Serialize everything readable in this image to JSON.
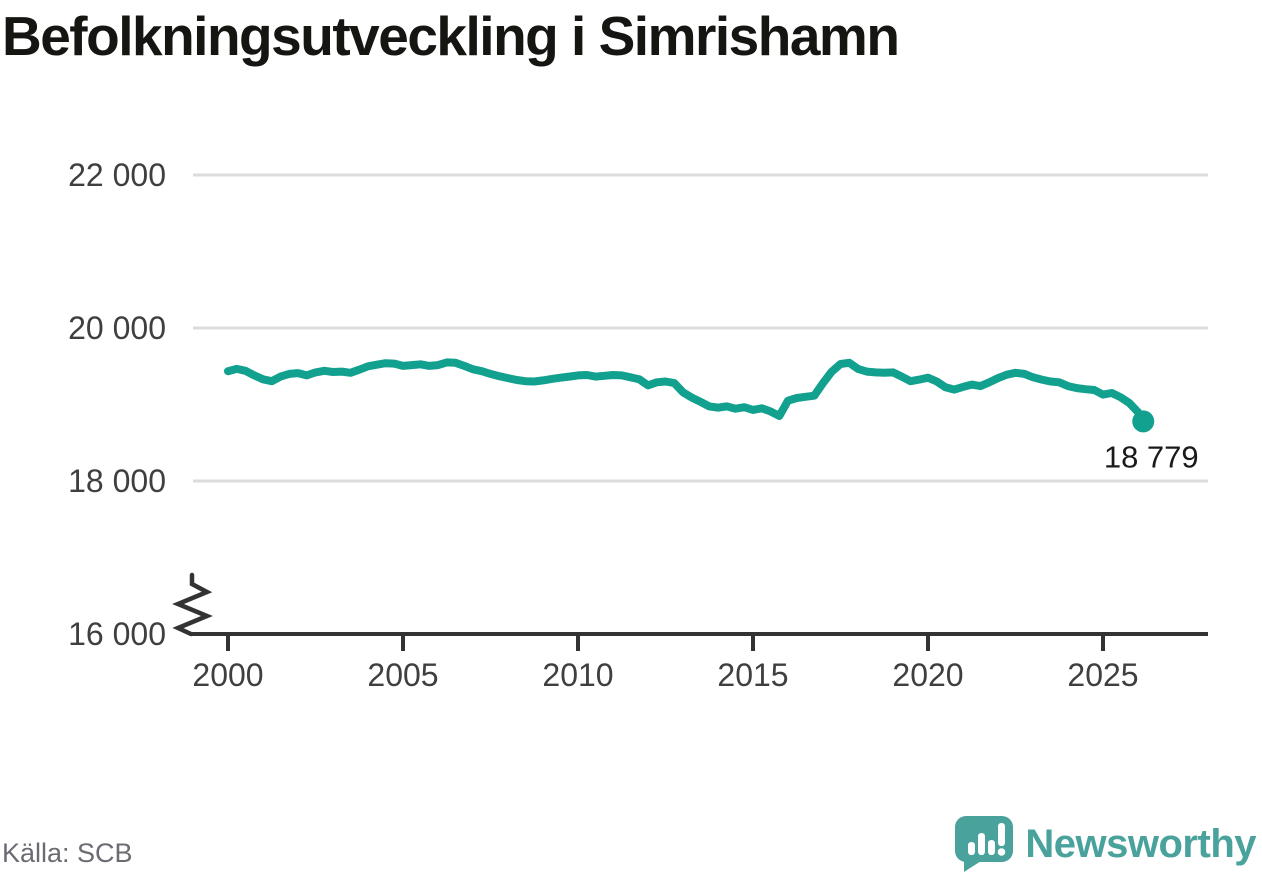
{
  "title": "Befolkningsutveckling i Simrishamn",
  "source": "Källa: SCB",
  "branding": {
    "name": "Newsworthy",
    "logo_icon": "bar-chart-speech-bubble-icon"
  },
  "colors": {
    "line": "#12a08f",
    "end_dot": "#12a08f",
    "grid": "#dcdcdc",
    "axis": "#333333",
    "tick_label": "#3f3f3f",
    "value_label": "#1a1a1a",
    "source_text": "#6b6b74",
    "brand_teal": "#4aa29c",
    "title_text": "#151512"
  },
  "chart_data": {
    "type": "line",
    "title": "Befolkningsutveckling i Simrishamn",
    "xlabel": "",
    "ylabel": "",
    "x_ticks": [
      2000,
      2005,
      2010,
      2015,
      2020,
      2025
    ],
    "y_ticks": [
      16000,
      18000,
      20000,
      22000
    ],
    "y_tick_labels": [
      "16 000",
      "18 000",
      "20 000",
      "22 000"
    ],
    "xlim": [
      1999,
      2028
    ],
    "ylim": [
      16000,
      22000
    ],
    "axis_break_at_bottom": true,
    "grid": "horizontal",
    "legend": "none",
    "end_value": 18779,
    "end_value_label": "18 779",
    "series": [
      {
        "name": "Befolkning i Simrishamn",
        "points": [
          [
            2000.0,
            19435
          ],
          [
            2000.25,
            19465
          ],
          [
            2000.5,
            19440
          ],
          [
            2000.75,
            19380
          ],
          [
            2001.0,
            19330
          ],
          [
            2001.25,
            19305
          ],
          [
            2001.5,
            19365
          ],
          [
            2001.75,
            19400
          ],
          [
            2002.0,
            19410
          ],
          [
            2002.25,
            19380
          ],
          [
            2002.5,
            19420
          ],
          [
            2002.75,
            19440
          ],
          [
            2003.0,
            19425
          ],
          [
            2003.25,
            19430
          ],
          [
            2003.5,
            19415
          ],
          [
            2003.75,
            19455
          ],
          [
            2004.0,
            19500
          ],
          [
            2004.25,
            19520
          ],
          [
            2004.5,
            19540
          ],
          [
            2004.75,
            19535
          ],
          [
            2005.0,
            19505
          ],
          [
            2005.25,
            19515
          ],
          [
            2005.5,
            19525
          ],
          [
            2005.75,
            19505
          ],
          [
            2006.0,
            19515
          ],
          [
            2006.25,
            19550
          ],
          [
            2006.5,
            19545
          ],
          [
            2006.75,
            19505
          ],
          [
            2007.0,
            19460
          ],
          [
            2007.25,
            19435
          ],
          [
            2007.5,
            19400
          ],
          [
            2007.75,
            19370
          ],
          [
            2008.0,
            19345
          ],
          [
            2008.25,
            19320
          ],
          [
            2008.5,
            19305
          ],
          [
            2008.75,
            19300
          ],
          [
            2009.0,
            19315
          ],
          [
            2009.25,
            19335
          ],
          [
            2009.5,
            19350
          ],
          [
            2009.75,
            19365
          ],
          [
            2010.0,
            19380
          ],
          [
            2010.25,
            19385
          ],
          [
            2010.5,
            19365
          ],
          [
            2010.75,
            19375
          ],
          [
            2011.0,
            19385
          ],
          [
            2011.25,
            19380
          ],
          [
            2011.5,
            19355
          ],
          [
            2011.75,
            19330
          ],
          [
            2012.0,
            19250
          ],
          [
            2012.25,
            19290
          ],
          [
            2012.5,
            19300
          ],
          [
            2012.75,
            19280
          ],
          [
            2013.0,
            19160
          ],
          [
            2013.25,
            19090
          ],
          [
            2013.5,
            19035
          ],
          [
            2013.75,
            18975
          ],
          [
            2014.0,
            18960
          ],
          [
            2014.25,
            18975
          ],
          [
            2014.5,
            18945
          ],
          [
            2014.75,
            18965
          ],
          [
            2015.0,
            18930
          ],
          [
            2015.25,
            18950
          ],
          [
            2015.5,
            18910
          ],
          [
            2015.75,
            18850
          ],
          [
            2016.0,
            19050
          ],
          [
            2016.25,
            19085
          ],
          [
            2016.5,
            19100
          ],
          [
            2016.75,
            19115
          ],
          [
            2017.0,
            19280
          ],
          [
            2017.25,
            19430
          ],
          [
            2017.5,
            19530
          ],
          [
            2017.75,
            19545
          ],
          [
            2018.0,
            19465
          ],
          [
            2018.25,
            19430
          ],
          [
            2018.5,
            19420
          ],
          [
            2018.75,
            19415
          ],
          [
            2019.0,
            19420
          ],
          [
            2019.25,
            19365
          ],
          [
            2019.5,
            19305
          ],
          [
            2019.75,
            19325
          ],
          [
            2020.0,
            19350
          ],
          [
            2020.25,
            19300
          ],
          [
            2020.5,
            19225
          ],
          [
            2020.75,
            19195
          ],
          [
            2021.0,
            19230
          ],
          [
            2021.25,
            19260
          ],
          [
            2021.5,
            19240
          ],
          [
            2021.75,
            19290
          ],
          [
            2022.0,
            19345
          ],
          [
            2022.25,
            19390
          ],
          [
            2022.5,
            19415
          ],
          [
            2022.75,
            19400
          ],
          [
            2023.0,
            19355
          ],
          [
            2023.25,
            19325
          ],
          [
            2023.5,
            19300
          ],
          [
            2023.75,
            19290
          ],
          [
            2024.0,
            19240
          ],
          [
            2024.25,
            19215
          ],
          [
            2024.5,
            19200
          ],
          [
            2024.75,
            19190
          ],
          [
            2025.0,
            19130
          ],
          [
            2025.25,
            19150
          ],
          [
            2025.5,
            19095
          ],
          [
            2025.75,
            19020
          ],
          [
            2026.0,
            18900
          ],
          [
            2026.15,
            18779
          ]
        ]
      }
    ]
  }
}
